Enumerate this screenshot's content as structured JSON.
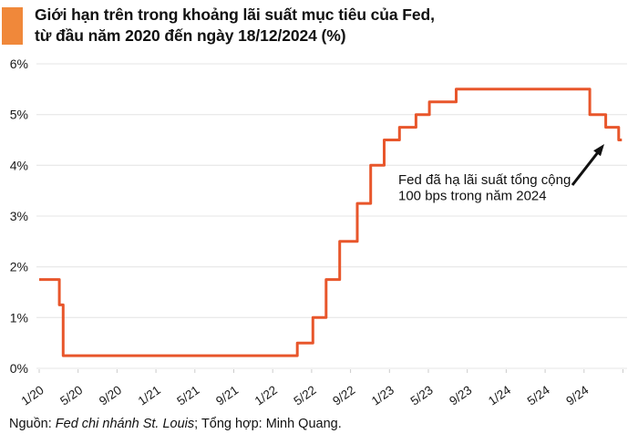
{
  "header": {
    "title_line1": "Giới hạn trên trong khoảng lãi suất mục tiêu của Fed,",
    "title_line2": "từ đầu năm 2020 đến ngày 18/12/2024 (%)",
    "accent_color": "#f0883a"
  },
  "footer": {
    "source_prefix": "Nguồn: ",
    "source_name": "Fed chi nhánh St. Louis",
    "source_suffix": "; Tổng hợp: Minh Quang."
  },
  "chart_data": {
    "type": "line",
    "line_style": "step-after",
    "series_name": "Fed target range upper bound",
    "unit": "%",
    "title": "Giới hạn trên trong khoảng lãi suất mục tiêu của Fed, từ đầu năm 2020 đến ngày 18/12/2024 (%)",
    "points": [
      {
        "date": "2020-01-01",
        "value": 1.75
      },
      {
        "date": "2020-03-03",
        "value": 1.25
      },
      {
        "date": "2020-03-15",
        "value": 0.25
      },
      {
        "date": "2022-03-17",
        "value": 0.5
      },
      {
        "date": "2022-05-05",
        "value": 1.0
      },
      {
        "date": "2022-06-16",
        "value": 1.75
      },
      {
        "date": "2022-07-28",
        "value": 2.5
      },
      {
        "date": "2022-09-22",
        "value": 3.25
      },
      {
        "date": "2022-11-03",
        "value": 4.0
      },
      {
        "date": "2022-12-15",
        "value": 4.5
      },
      {
        "date": "2023-02-02",
        "value": 4.75
      },
      {
        "date": "2023-03-23",
        "value": 5.0
      },
      {
        "date": "2023-05-04",
        "value": 5.25
      },
      {
        "date": "2023-07-27",
        "value": 5.5
      },
      {
        "date": "2024-09-19",
        "value": 5.0
      },
      {
        "date": "2024-11-08",
        "value": 4.75
      },
      {
        "date": "2024-12-18",
        "value": 4.5
      }
    ],
    "x_end_date": "2024-12-28",
    "x_tick_labels": [
      "1/20",
      "5/20",
      "9/20",
      "1/21",
      "5/21",
      "9/21",
      "1/22",
      "5/22",
      "9/22",
      "1/23",
      "5/23",
      "9/23",
      "1/24",
      "5/24",
      "9/24"
    ],
    "y_tick_labels": [
      "0%",
      "1%",
      "2%",
      "3%",
      "4%",
      "5%",
      "6%"
    ],
    "ylim": [
      0,
      6
    ],
    "grid": "horizontal",
    "legend": "none",
    "line_color": "#e8562b",
    "grid_color": "#e4e4e4",
    "tick_color": "#cccccc",
    "annotation": {
      "lines": [
        "Fed đã hạ lãi suất tổng cộng",
        "100 bps trong năm 2024"
      ],
      "arrow": true,
      "arrow_color": "#111111"
    }
  }
}
